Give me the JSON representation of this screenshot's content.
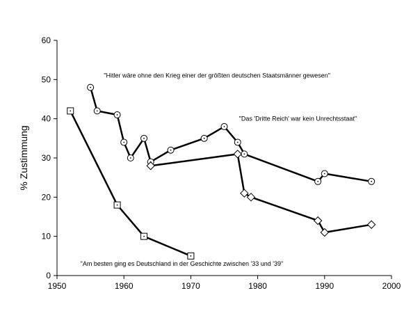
{
  "chart_data": {
    "type": "line",
    "title": "",
    "xlabel": "",
    "ylabel": "% Zustimmung",
    "xlim": [
      1950,
      2000
    ],
    "ylim": [
      0,
      60
    ],
    "xticks": [
      1950,
      1960,
      1970,
      1980,
      1990,
      2000
    ],
    "yticks": [
      0,
      10,
      20,
      30,
      40,
      50,
      60
    ],
    "grid": false,
    "legend": "none",
    "series": [
      {
        "marker": "circle-dot",
        "x": [
          1955,
          1956,
          1959,
          1960,
          1961,
          1963,
          1964,
          1967,
          1972,
          1975,
          1977,
          1978,
          1989,
          1990,
          1997
        ],
        "values": [
          48,
          42,
          41,
          34,
          30,
          35,
          29,
          32,
          35,
          38,
          34,
          31,
          24,
          26,
          24
        ]
      },
      {
        "marker": "diamond",
        "x": [
          1964,
          1977,
          1978,
          1979,
          1989,
          1990,
          1997
        ],
        "values": [
          28,
          31,
          21,
          20,
          14,
          11,
          13
        ]
      },
      {
        "marker": "square-dot",
        "x": [
          1952,
          1959,
          1963,
          1970
        ],
        "values": [
          42,
          18,
          10,
          5
        ]
      }
    ],
    "annotations": [
      {
        "text": "\"Hitler wäre ohne den Krieg einer der größten deutschen Staatsmänner gewesen\"",
        "x": 1957,
        "y": 50.5
      },
      {
        "text": "\"Das 'Dritte Reich' war kein Unrechtsstaat\"",
        "x": 1977.2,
        "y": 39.5
      },
      {
        "text": "\"Am besten ging es Deutschland in der Geschichte zwischen '33 und '39\"",
        "x": 1953.5,
        "y": 2.5
      }
    ]
  }
}
